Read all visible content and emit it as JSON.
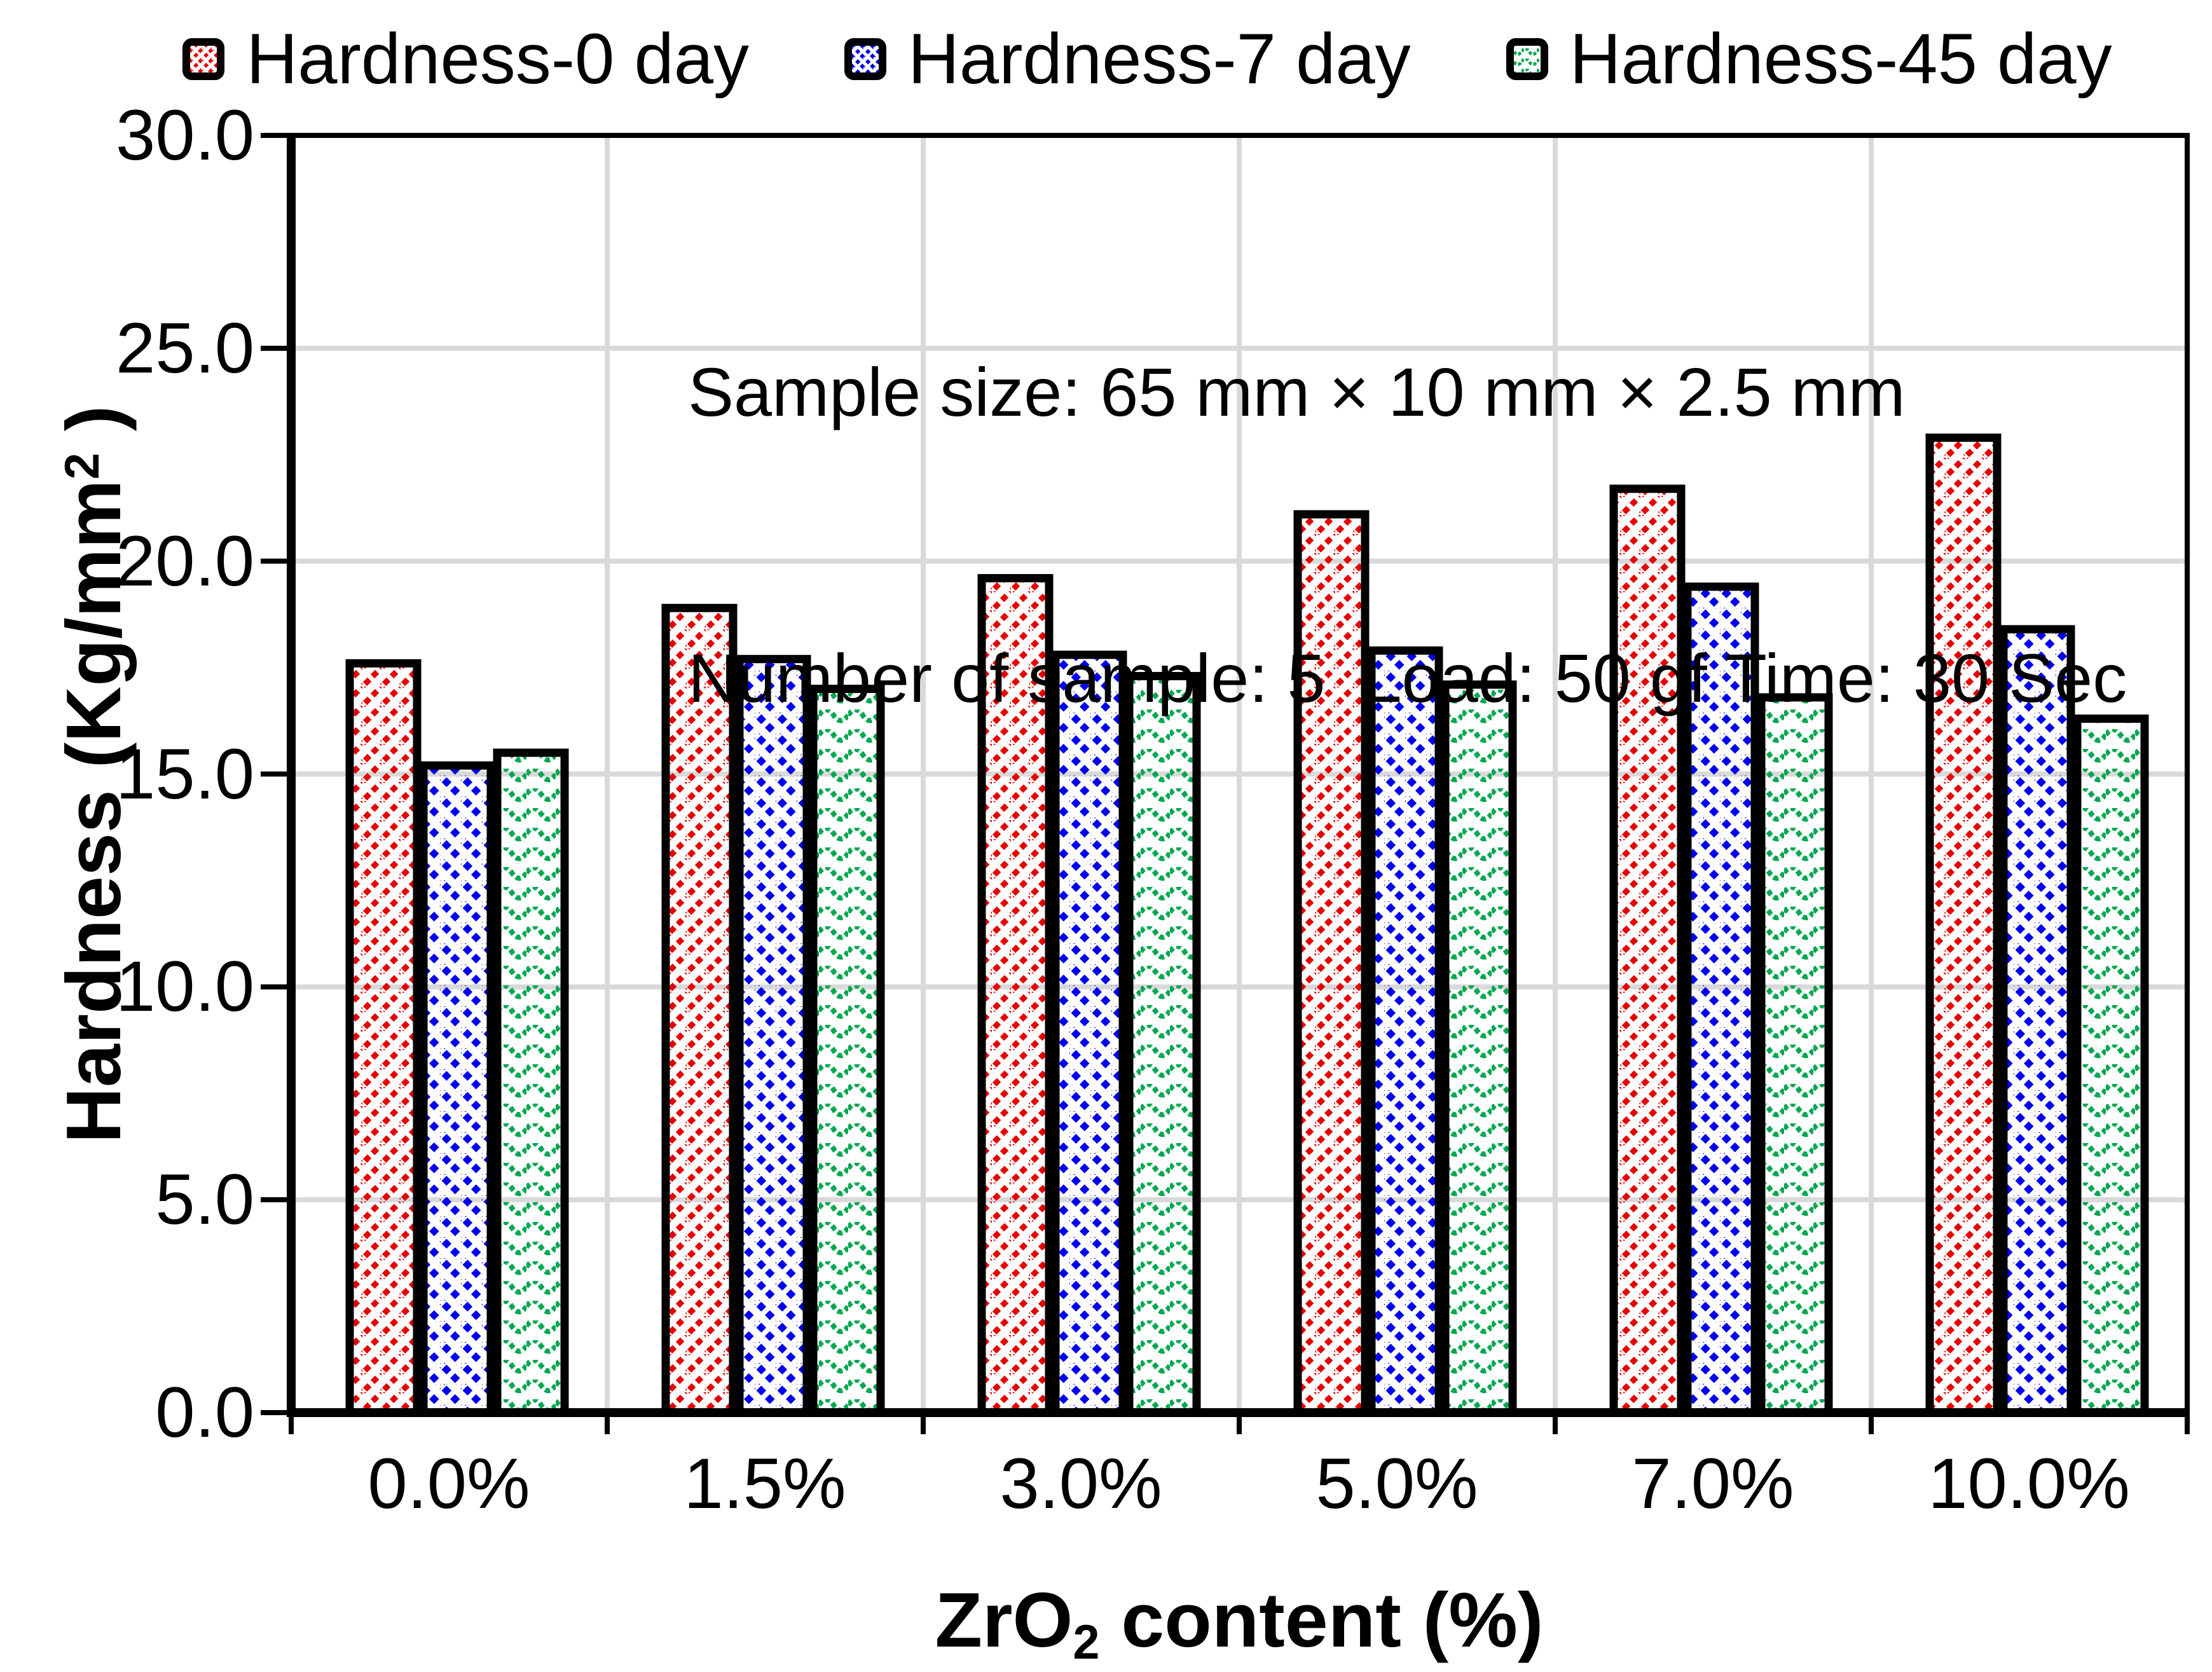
{
  "chart_data": {
    "type": "bar",
    "categories": [
      "0.0%",
      "1.5%",
      "3.0%",
      "5.0%",
      "7.0%",
      "10.0%"
    ],
    "series": [
      {
        "name": "Hardness-0 day",
        "color": "#e60000",
        "pattern": "diagonal-up-dashed",
        "values": [
          17.6,
          18.9,
          19.6,
          21.1,
          21.7,
          22.9
        ]
      },
      {
        "name": "Hardness-7 day",
        "color": "#0000ee",
        "pattern": "diagonal-down-dashed",
        "values": [
          15.2,
          17.7,
          17.8,
          17.9,
          19.4,
          18.4
        ]
      },
      {
        "name": "Hardness-45 day",
        "color": "#00a84f",
        "pattern": "horizontal-wave",
        "values": [
          15.5,
          17.0,
          17.3,
          17.1,
          16.8,
          16.3
        ]
      }
    ],
    "xlabel": {
      "prefix": "ZrO",
      "sub": "2",
      "suffix": " content (%)"
    },
    "ylabel": {
      "prefix": "Hardness (Kg/mm",
      "sup": "2",
      "suffix": " )"
    },
    "ylim": [
      0,
      30
    ],
    "y_tick_step": 5,
    "y_tick_labels": [
      "0.0",
      "5.0",
      "10.0",
      "15.0",
      "20.0",
      "25.0",
      "30.0"
    ],
    "grid": true,
    "legend_position": "top",
    "annotation_line1": "Sample size: 65 mm × 10 mm × 2.5 mm",
    "annotation_line2": "Number of sample: 5  Load: 50 gf Time: 30 Sec",
    "grid_color": "#d9d9d9",
    "axis_color": "#000000",
    "bar_border_color": "#000000"
  }
}
